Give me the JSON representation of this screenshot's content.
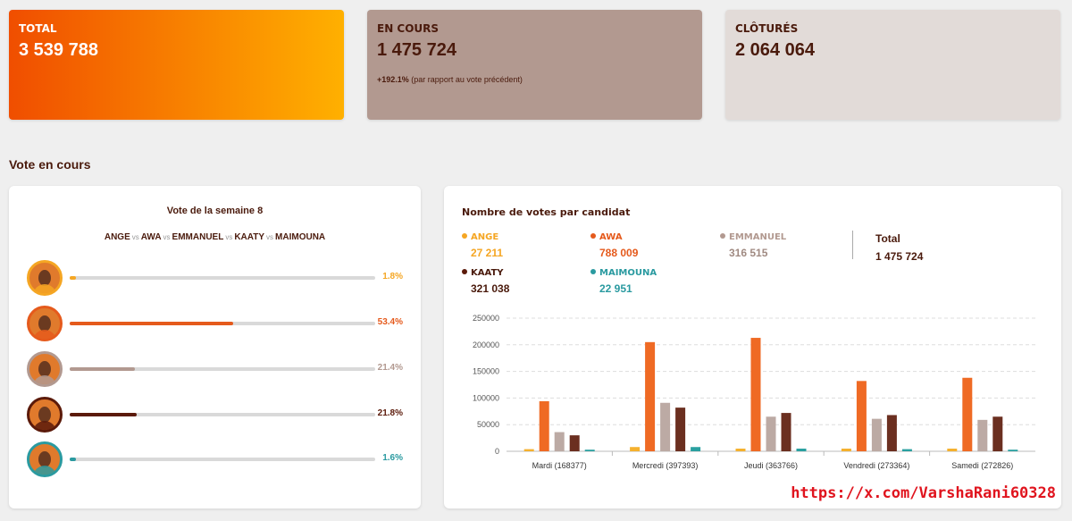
{
  "stats": {
    "total": {
      "label": "TOTAL",
      "value": "3 539 788"
    },
    "en_cours": {
      "label": "EN COURS",
      "value": "1 475 724",
      "delta": "+192.1%",
      "delta_note": "(par rapport au vote précédent)"
    },
    "clotures": {
      "label": "CLÔTURÉS",
      "value": "2 064 064"
    }
  },
  "section_title": "Vote en cours",
  "left_panel": {
    "title": "Vote de la semaine 8",
    "matchup": [
      "ANGE",
      "AWA",
      "EMMANUEL",
      "KAATY",
      "MAIMOUNA"
    ],
    "vs": "vs",
    "candidates": [
      {
        "name": "ANGE",
        "pct": "1.8%",
        "ratio": 0.018,
        "color": "#f5a623"
      },
      {
        "name": "AWA",
        "pct": "53.4%",
        "ratio": 0.534,
        "color": "#e55a1c"
      },
      {
        "name": "EMMANUEL",
        "pct": "21.4%",
        "ratio": 0.214,
        "color": "#b29990"
      },
      {
        "name": "KAATY",
        "pct": "21.8%",
        "ratio": 0.218,
        "color": "#5b1a0a"
      },
      {
        "name": "MAIMOUNA",
        "pct": "1.6%",
        "ratio": 0.016,
        "color": "#2a9aa0"
      }
    ]
  },
  "right_panel": {
    "title": "Nombre de votes par candidat",
    "legend": [
      {
        "name": "ANGE",
        "value": "27 211",
        "color": "#f5a623"
      },
      {
        "name": "AWA",
        "value": "788 009",
        "color": "#e55a1c"
      },
      {
        "name": "EMMANUEL",
        "value": "316 515",
        "color": "#b29990"
      },
      {
        "name": "KAATY",
        "value": "321 038",
        "color": "#5b1a0a"
      },
      {
        "name": "MAIMOUNA",
        "value": "22 951",
        "color": "#2a9aa0"
      }
    ],
    "total_label": "Total",
    "total_value": "1 475 724"
  },
  "chart_data": {
    "type": "bar",
    "categories": [
      "Mardi (168377)",
      "Mercredi (397393)",
      "Jeudi (363766)",
      "Vendredi (273364)",
      "Samedi (272826)"
    ],
    "series": [
      {
        "name": "ANGE",
        "color": "#f5b12e",
        "values": [
          4000,
          8000,
          5000,
          5000,
          5000
        ]
      },
      {
        "name": "AWA",
        "color": "#ef6a24",
        "values": [
          94000,
          205000,
          213000,
          132000,
          138000
        ]
      },
      {
        "name": "EMMANUEL",
        "color": "#bcaaa4",
        "values": [
          36000,
          91000,
          65000,
          61000,
          59000
        ]
      },
      {
        "name": "KAATY",
        "color": "#6b2f20",
        "values": [
          30000,
          82000,
          72000,
          68000,
          65000
        ]
      },
      {
        "name": "MAIMOUNA",
        "color": "#2aa0a0",
        "values": [
          3000,
          8000,
          5000,
          4000,
          3000
        ]
      }
    ],
    "ylim": [
      0,
      250000
    ],
    "yticks": [
      0,
      50000,
      100000,
      150000,
      200000,
      250000
    ],
    "ytick_labels": [
      "0",
      "50000",
      "100000",
      "150000",
      "200000",
      "250000"
    ],
    "grid": true
  },
  "watermark": "https://x.com/VarshaRani60328"
}
